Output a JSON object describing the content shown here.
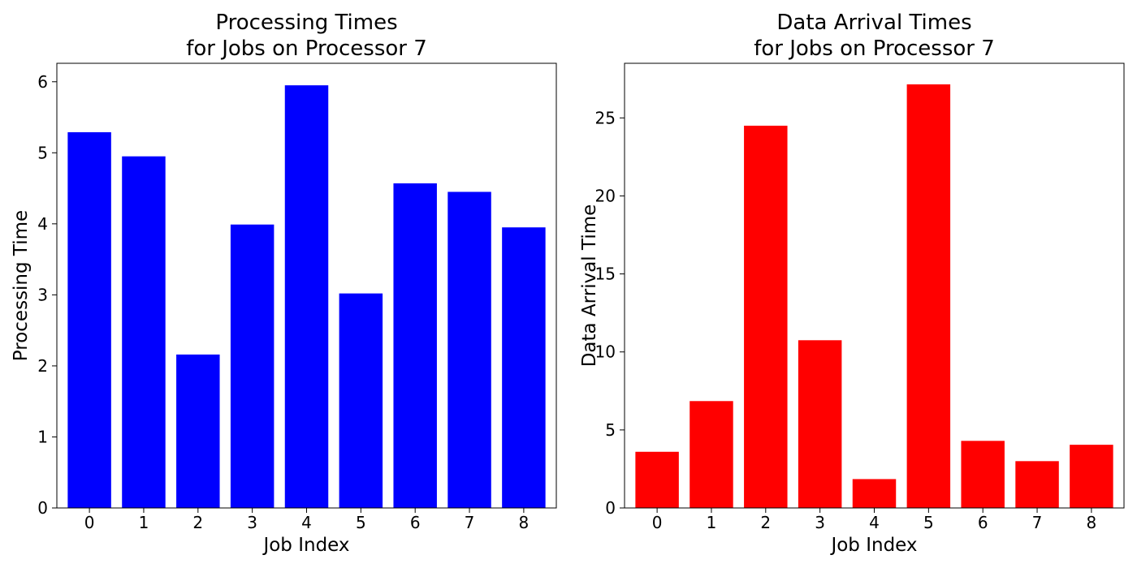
{
  "chart_data": [
    {
      "type": "bar",
      "title": [
        "Processing Times",
        "for Jobs on Processor 7"
      ],
      "xlabel": "Job Index",
      "ylabel": "Processing Time",
      "categories": [
        "0",
        "1",
        "2",
        "3",
        "4",
        "5",
        "6",
        "7",
        "8"
      ],
      "values": [
        5.29,
        4.95,
        2.16,
        3.99,
        5.95,
        3.02,
        4.57,
        4.45,
        3.95
      ],
      "ylim": [
        0,
        6.26
      ],
      "yticks": [
        0,
        1,
        2,
        3,
        4,
        5,
        6
      ],
      "ytick_labels": [
        "0",
        "1",
        "2",
        "3",
        "4",
        "5",
        "6"
      ],
      "color": "#0000ff",
      "grid": false
    },
    {
      "type": "bar",
      "title": [
        "Data Arrival Times",
        "for Jobs on Processor 7"
      ],
      "xlabel": "Job Index",
      "ylabel": "Data Arrival Time",
      "categories": [
        "0",
        "1",
        "2",
        "3",
        "4",
        "5",
        "6",
        "7",
        "8"
      ],
      "values": [
        3.6,
        6.85,
        24.5,
        10.75,
        1.85,
        27.15,
        4.3,
        3.0,
        4.05
      ],
      "ylim": [
        0,
        28.5
      ],
      "yticks": [
        0,
        5,
        10,
        15,
        20,
        25
      ],
      "ytick_labels": [
        "0",
        "5",
        "10",
        "15",
        "20",
        "25"
      ],
      "color": "#ff0000",
      "grid": false
    }
  ]
}
